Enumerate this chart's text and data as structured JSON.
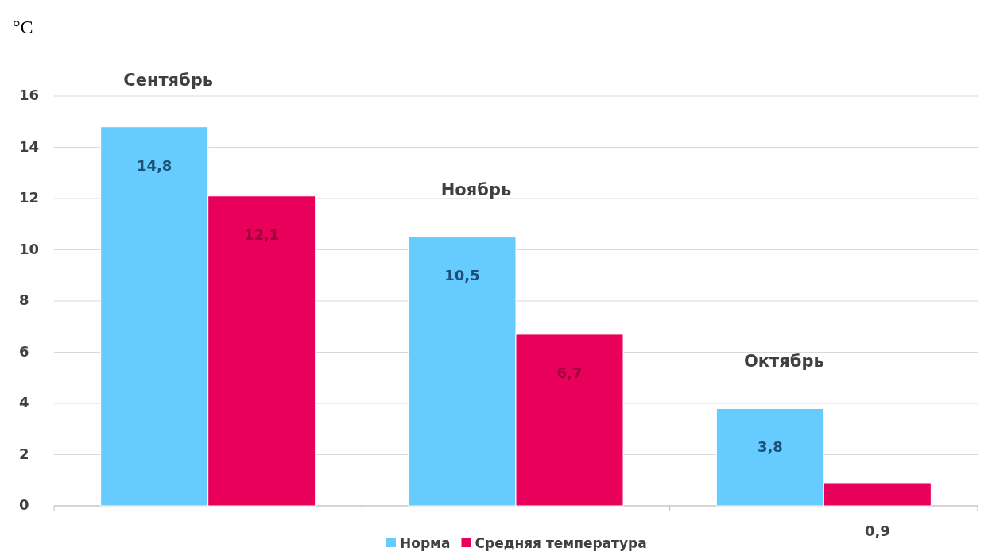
{
  "chart_data": {
    "type": "bar",
    "ylabel": "°C",
    "categories": [
      "Сентябрь",
      "Ноябрь",
      "Октябрь"
    ],
    "series": [
      {
        "name": "Норма",
        "color": "#66ccff",
        "values": [
          14.8,
          10.5,
          3.8
        ],
        "value_labels": [
          "14,8",
          "10,5",
          "3,8"
        ]
      },
      {
        "name": "Средняя температура",
        "color": "#e8005a",
        "values": [
          12.1,
          6.7,
          0.9
        ],
        "value_labels": [
          "12,1",
          "6,7",
          "0,9"
        ]
      }
    ],
    "ylim": [
      0,
      16
    ],
    "yticks": [
      0,
      2,
      4,
      6,
      8,
      10,
      12,
      14,
      16
    ],
    "grid": "y",
    "legend": "bottom"
  }
}
